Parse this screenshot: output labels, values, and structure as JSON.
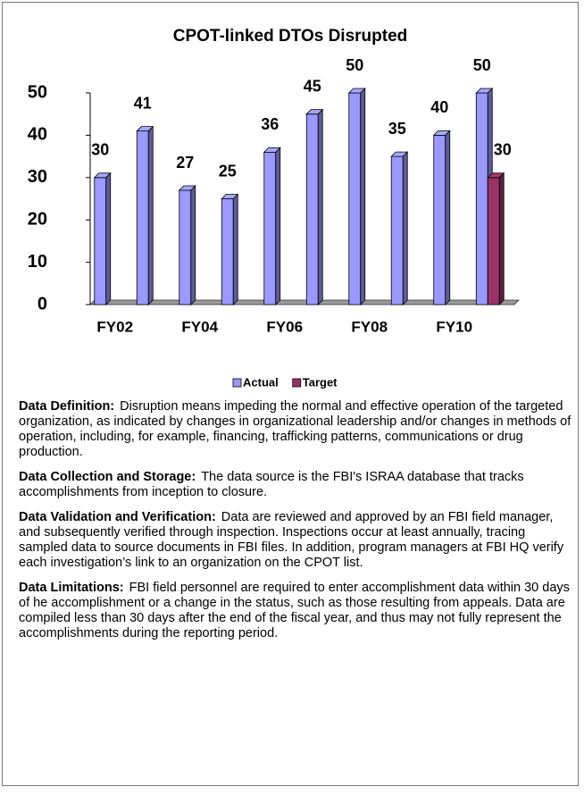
{
  "chart_data": {
    "type": "bar",
    "title": "CPOT-linked DTOs Disrupted",
    "categories": [
      "FY02",
      null,
      "FY04",
      null,
      "FY06",
      null,
      "FY08",
      null,
      "FY10",
      null
    ],
    "series": [
      {
        "name": "Actual",
        "color": "#9999ff",
        "values": [
          30,
          41,
          27,
          25,
          36,
          45,
          50,
          35,
          40,
          50
        ]
      },
      {
        "name": "Target",
        "color": "#993366",
        "values": [
          null,
          null,
          null,
          null,
          null,
          null,
          null,
          null,
          null,
          30
        ]
      }
    ],
    "ylim": [
      0,
      50
    ],
    "yticks": [
      0,
      10,
      20,
      30,
      40,
      50
    ],
    "grid": false,
    "legend": "bottom",
    "bar_3d": true
  },
  "notes": [
    {
      "heading": "Data Definition:",
      "text": "Disruption means impeding the normal and effective operation of the targeted organization, as indicated by changes in organizational leadership and/or changes in methods of operation, including, for example, financing, trafficking patterns, communications or drug production."
    },
    {
      "heading": "Data Collection and Storage:",
      "text": "The data source is the FBI's ISRAA database that tracks accomplishments from inception to closure."
    },
    {
      "heading": "Data Validation and Verification:",
      "text": "Data are reviewed and approved by an FBI field manager, and subsequently verified through inspection. Inspections occur at least annually, tracing sampled data to source documents in FBI files. In addition, program managers at FBI HQ verify each investigation’s link to an organization on the CPOT list."
    },
    {
      "heading": "Data Limitations:",
      "text": "FBI field personnel are required to enter accomplishment data within 30 days of he accomplishment or a change in the status, such as those resulting from appeals. Data are compiled less than 30 days after the end of the fiscal year, and thus may not fully represent the accomplishments during the reporting period."
    }
  ]
}
